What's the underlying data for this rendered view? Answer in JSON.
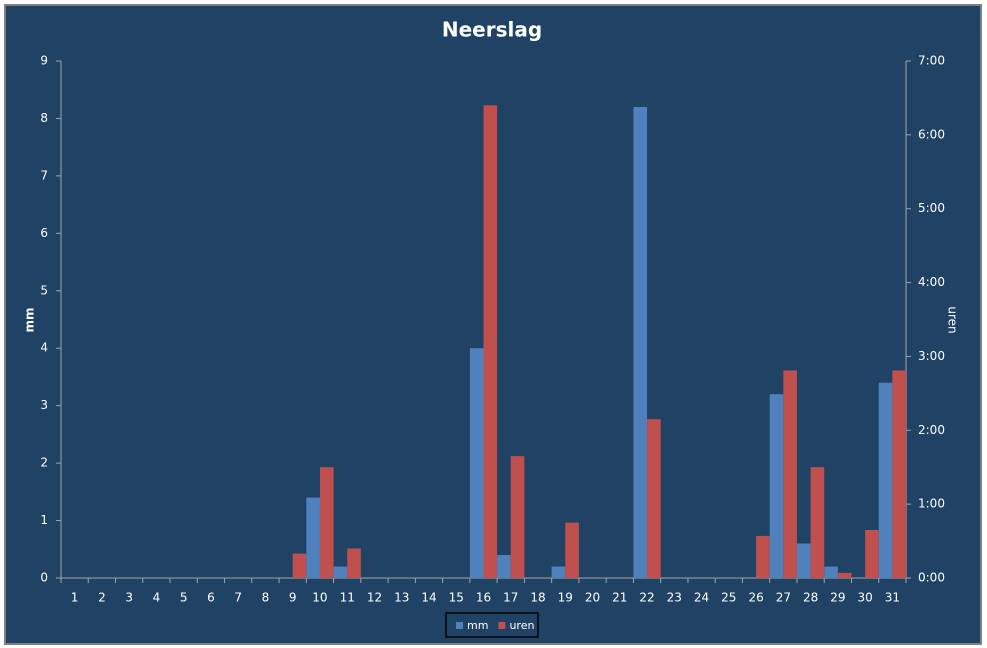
{
  "chart_data": {
    "type": "bar",
    "title": "Neerslag",
    "categories": [
      "1",
      "2",
      "3",
      "4",
      "5",
      "6",
      "7",
      "8",
      "9",
      "10",
      "11",
      "12",
      "13",
      "14",
      "15",
      "16",
      "17",
      "18",
      "19",
      "20",
      "21",
      "22",
      "23",
      "24",
      "25",
      "26",
      "27",
      "28",
      "29",
      "30",
      "31"
    ],
    "ylabel": "mm",
    "y2label": "uren",
    "ylim": [
      0,
      9
    ],
    "yticks": [
      0,
      1,
      2,
      3,
      4,
      5,
      6,
      7,
      8,
      9
    ],
    "y2lim": [
      0,
      7
    ],
    "y2ticks": [
      {
        "value": 0,
        "label": "0:00"
      },
      {
        "value": 1,
        "label": "1:00"
      },
      {
        "value": 2,
        "label": "2:00"
      },
      {
        "value": 3,
        "label": "3:00"
      },
      {
        "value": 4,
        "label": "4:00"
      },
      {
        "value": 5,
        "label": "5:00"
      },
      {
        "value": 6,
        "label": "6:00"
      },
      {
        "value": 7,
        "label": "7:00"
      }
    ],
    "legend": "bottom",
    "series": [
      {
        "name": "mm",
        "color": "#4f81bd",
        "values": [
          0,
          0,
          0,
          0,
          0,
          0,
          0,
          0,
          0,
          1.4,
          0.2,
          0,
          0,
          0,
          0,
          4.0,
          0.4,
          0,
          0.2,
          0,
          0,
          8.2,
          0,
          0,
          0,
          0,
          3.2,
          0.6,
          0.2,
          0,
          3.4
        ]
      },
      {
        "name": "uren",
        "color": "#c0504d",
        "axis": "y2",
        "values": [
          0,
          0,
          0,
          0,
          0,
          0,
          0,
          0,
          0.33,
          1.5,
          0.4,
          0,
          0,
          0,
          0,
          6.4,
          1.65,
          0,
          0.75,
          0,
          0,
          2.15,
          0,
          0,
          0,
          0.57,
          2.81,
          1.5,
          0.07,
          0.65,
          2.81
        ]
      }
    ]
  }
}
